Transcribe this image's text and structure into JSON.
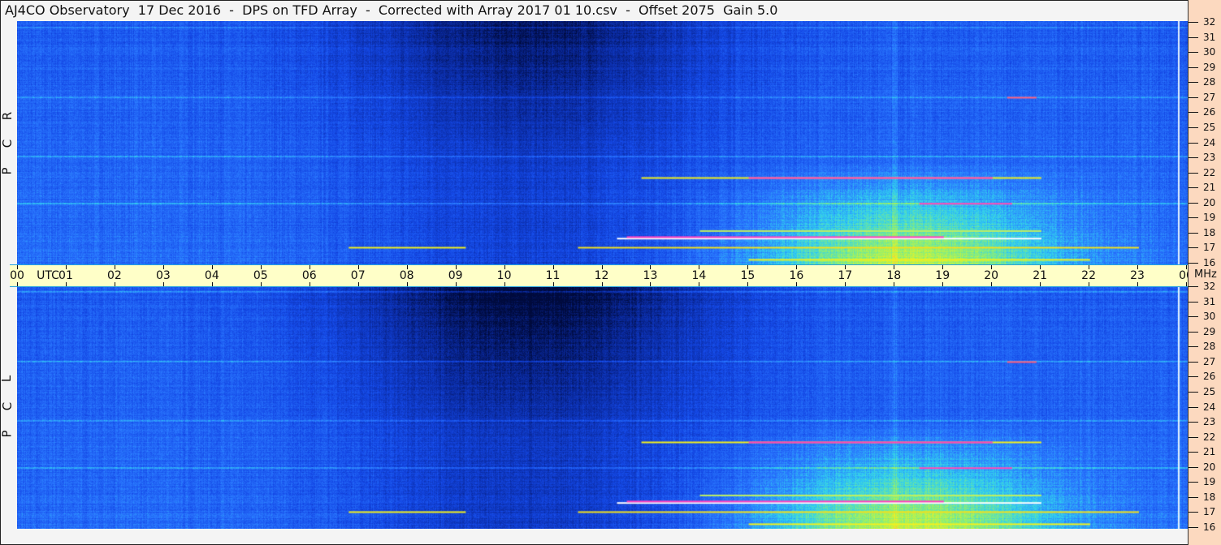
{
  "title": "AJ4CO Observatory  17 Dec 2016  -  DPS on TFD Array  -  Corrected with Array 2017 01 10.csv  -  Offset 2075  Gain 5.0",
  "chart_data": {
    "type": "heatmap",
    "title": "AJ4CO Observatory  17 Dec 2016  -  DPS on TFD Array  -  Corrected with Array 2017 01 10.csv  -  Offset 2075  Gain 5.0",
    "xlabel": "UTC",
    "ylabel": "MHz",
    "x_ticks": [
      "00",
      "01",
      "02",
      "03",
      "04",
      "05",
      "06",
      "07",
      "08",
      "09",
      "10",
      "11",
      "12",
      "13",
      "14",
      "15",
      "16",
      "17",
      "18",
      "19",
      "20",
      "21",
      "22",
      "23",
      "00"
    ],
    "y_ticks": [
      "32",
      "31",
      "30",
      "29",
      "28",
      "27",
      "26",
      "25",
      "24",
      "23",
      "22",
      "21",
      "20",
      "19",
      "18",
      "17",
      "16"
    ],
    "xlim": [
      0,
      24
    ],
    "ylim": [
      16,
      32
    ],
    "panels": [
      {
        "label": [
          "R",
          "C",
          "P"
        ]
      },
      {
        "label": [
          "L",
          "C",
          "P"
        ]
      }
    ],
    "colormap": [
      "#000a3c",
      "#0a2aa0",
      "#1448e6",
      "#2a78ff",
      "#30d0f0",
      "#90f070",
      "#f0f020",
      "#ff30c0",
      "#ffffff"
    ]
  }
}
